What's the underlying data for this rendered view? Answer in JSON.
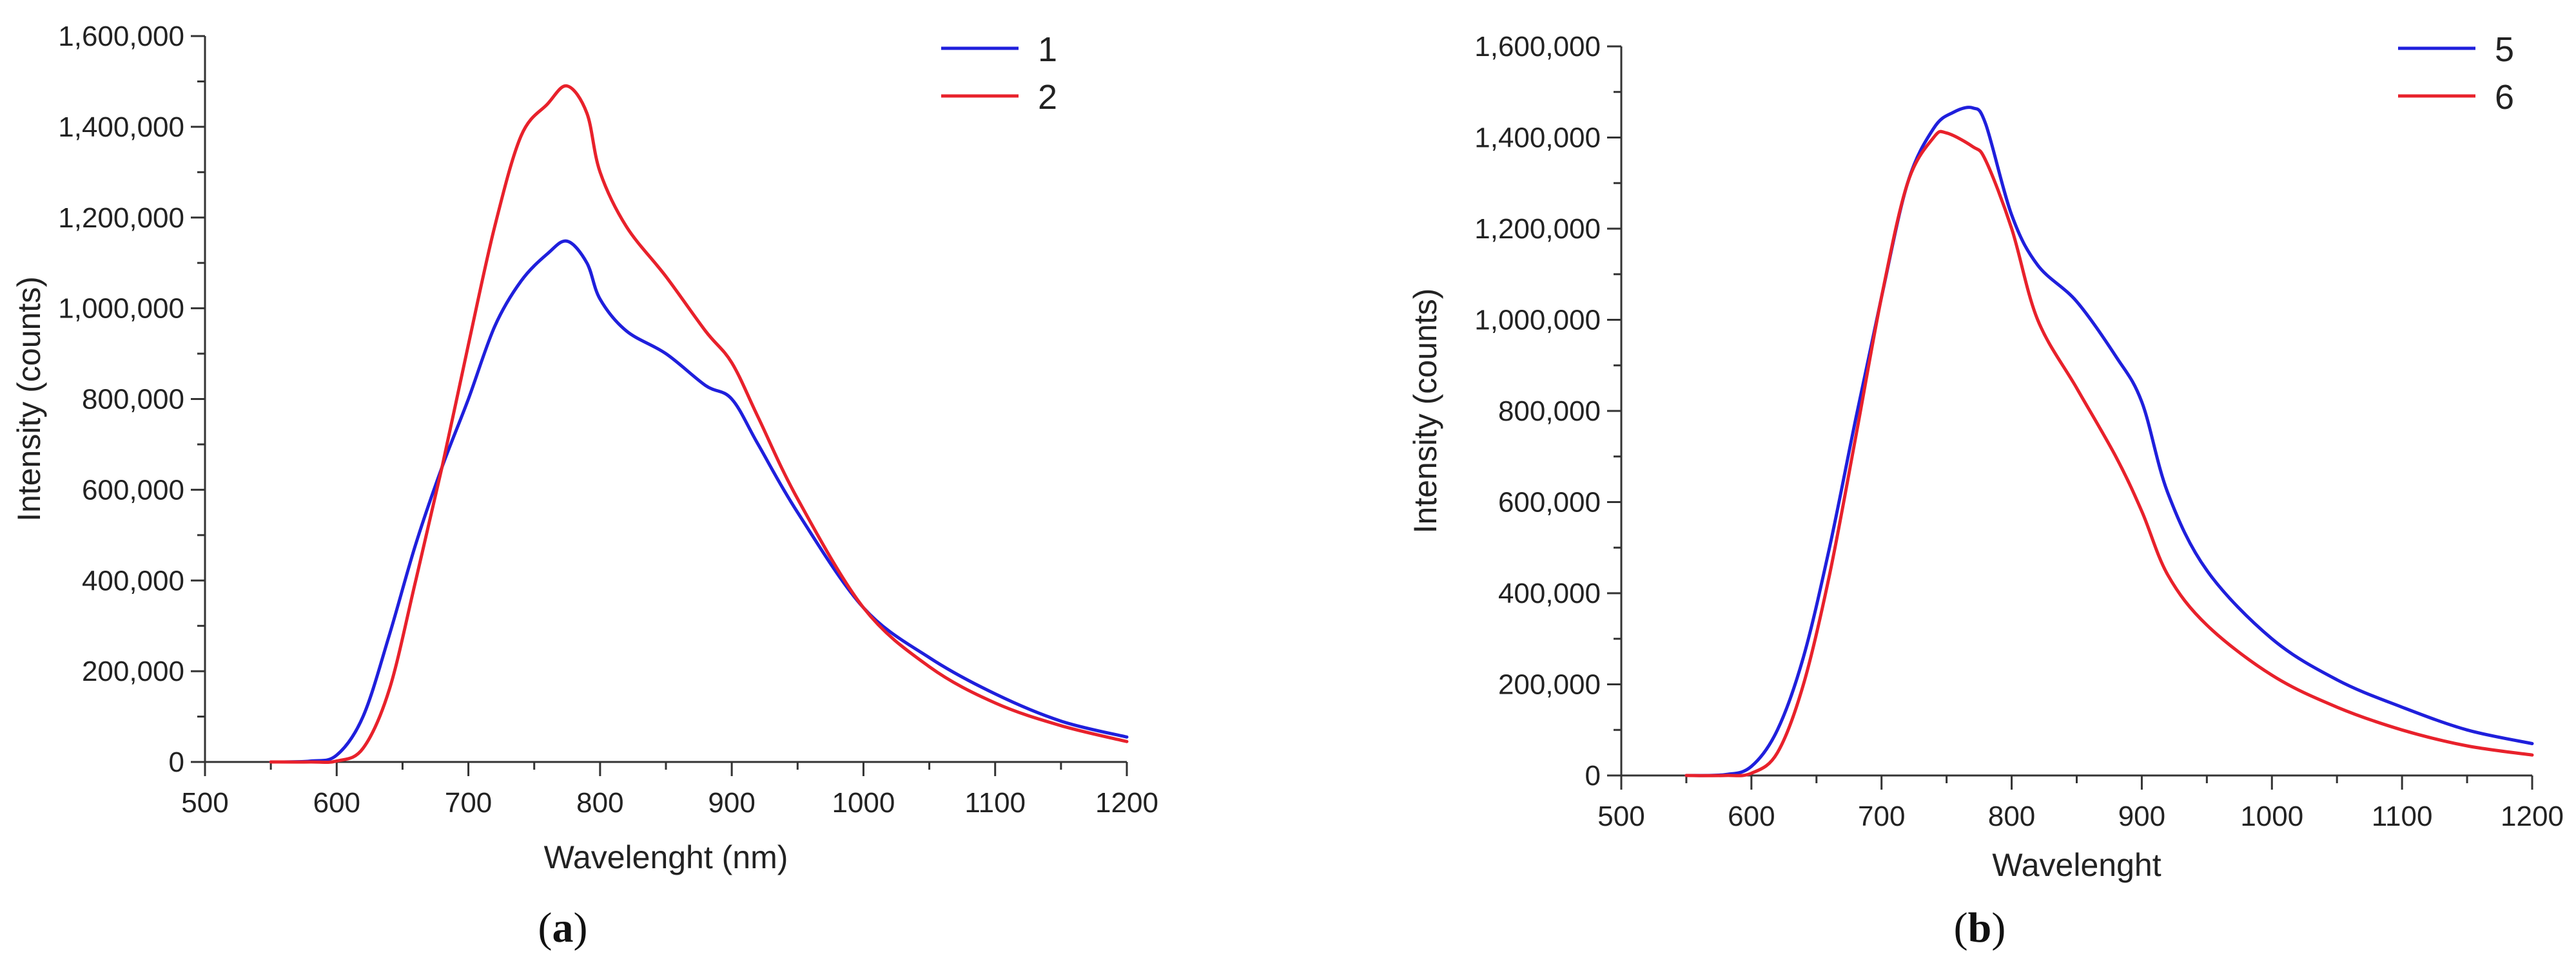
{
  "chart_data": [
    {
      "type": "line",
      "panel_label": "a",
      "xlabel": "Wavelenght (nm)",
      "ylabel": "Intensity (counts)",
      "xlim": [
        500,
        1200
      ],
      "ylim": [
        0,
        1600000
      ],
      "x_ticks": [
        "500",
        "600",
        "700",
        "800",
        "900",
        "1000",
        "1100",
        "1200"
      ],
      "y_ticks": [
        "0",
        "200,000",
        "400,000",
        "600,000",
        "800,000",
        "1,000,000",
        "1,200,000",
        "1,400,000",
        "1,600,000"
      ],
      "grid": false,
      "legend_position": "top-right",
      "series": [
        {
          "name": "1",
          "color": "#1f1fdc",
          "x": [
            550,
            580,
            600,
            620,
            640,
            660,
            680,
            700,
            720,
            740,
            760,
            775,
            790,
            800,
            820,
            850,
            880,
            900,
            920,
            950,
            1000,
            1050,
            1100,
            1150,
            1200
          ],
          "y": [
            0,
            2000,
            15000,
            100000,
            280000,
            480000,
            650000,
            800000,
            960000,
            1060000,
            1120000,
            1148000,
            1100000,
            1020000,
            950000,
            900000,
            830000,
            800000,
            700000,
            550000,
            340000,
            230000,
            150000,
            90000,
            55000
          ]
        },
        {
          "name": "2",
          "color": "#e8212b",
          "x": [
            550,
            580,
            600,
            620,
            640,
            660,
            680,
            700,
            720,
            740,
            760,
            775,
            790,
            800,
            820,
            850,
            880,
            900,
            920,
            950,
            1000,
            1050,
            1100,
            1150,
            1200
          ],
          "y": [
            0,
            0,
            2000,
            30000,
            160000,
            400000,
            650000,
            920000,
            1180000,
            1380000,
            1450000,
            1490000,
            1430000,
            1300000,
            1180000,
            1070000,
            950000,
            880000,
            760000,
            580000,
            340000,
            210000,
            130000,
            80000,
            45000
          ]
        }
      ]
    },
    {
      "type": "line",
      "panel_label": "b",
      "xlabel": "Wavelenght",
      "ylabel": "Intensity (counts)",
      "xlim": [
        500,
        1200
      ],
      "ylim": [
        0,
        1600000
      ],
      "x_ticks": [
        "500",
        "600",
        "700",
        "800",
        "900",
        "1000",
        "1100",
        "1200"
      ],
      "y_ticks": [
        "0",
        "200,000",
        "400,000",
        "600,000",
        "800,000",
        "1,000,000",
        "1,200,000",
        "1,400,000",
        "1,600,000"
      ],
      "grid": false,
      "legend_position": "top-right",
      "series": [
        {
          "name": "5",
          "color": "#1f1fdc",
          "x": [
            550,
            580,
            600,
            620,
            640,
            660,
            680,
            700,
            720,
            740,
            755,
            770,
            780,
            800,
            820,
            850,
            880,
            900,
            920,
            950,
            1000,
            1050,
            1100,
            1150,
            1200
          ],
          "y": [
            0,
            2000,
            20000,
            100000,
            260000,
            500000,
            780000,
            1050000,
            1300000,
            1420000,
            1455000,
            1465000,
            1430000,
            1230000,
            1120000,
            1040000,
            920000,
            820000,
            620000,
            450000,
            300000,
            210000,
            150000,
            100000,
            70000
          ]
        },
        {
          "name": "6",
          "color": "#e8212b",
          "x": [
            550,
            580,
            600,
            620,
            640,
            660,
            680,
            700,
            720,
            740,
            750,
            770,
            780,
            800,
            820,
            850,
            880,
            900,
            920,
            950,
            1000,
            1050,
            1100,
            1150,
            1200
          ],
          "y": [
            0,
            0,
            5000,
            50000,
            200000,
            440000,
            740000,
            1050000,
            1300000,
            1400000,
            1410000,
            1380000,
            1350000,
            1200000,
            1000000,
            850000,
            700000,
            580000,
            440000,
            330000,
            220000,
            150000,
            100000,
            65000,
            45000
          ]
        }
      ]
    }
  ]
}
